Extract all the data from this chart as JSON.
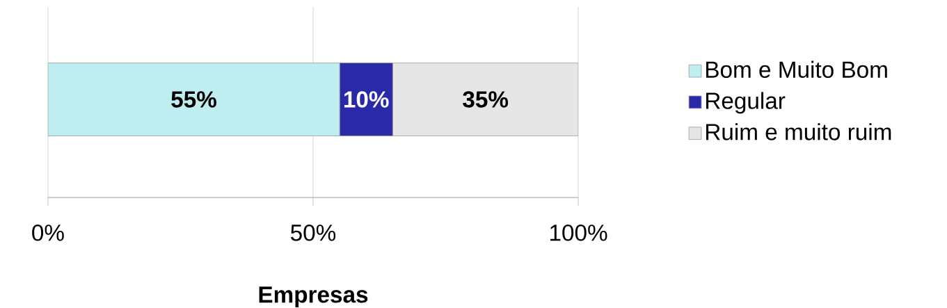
{
  "chart_data": {
    "type": "bar",
    "orientation": "horizontal",
    "stacked": true,
    "categories": [
      null
    ],
    "series": [
      {
        "name": "Bom e Muito Bom",
        "color": "#bfeef0",
        "values": [
          55
        ],
        "value_labels": [
          "55%"
        ]
      },
      {
        "name": "Regular",
        "color": "#2a2aa8",
        "values": [
          10
        ],
        "value_labels": [
          "10%"
        ]
      },
      {
        "name": "Ruim e muito ruim",
        "color": "#e6e6e6",
        "values": [
          35
        ],
        "value_labels": [
          "35%"
        ]
      }
    ],
    "xlim": [
      0,
      100
    ],
    "xticks": [
      {
        "value": 0,
        "label": "0%"
      },
      {
        "value": 50,
        "label": "50%"
      },
      {
        "value": 100,
        "label": "100%"
      }
    ],
    "xlabel": "Empresas",
    "grid": "x",
    "legend": "right"
  }
}
